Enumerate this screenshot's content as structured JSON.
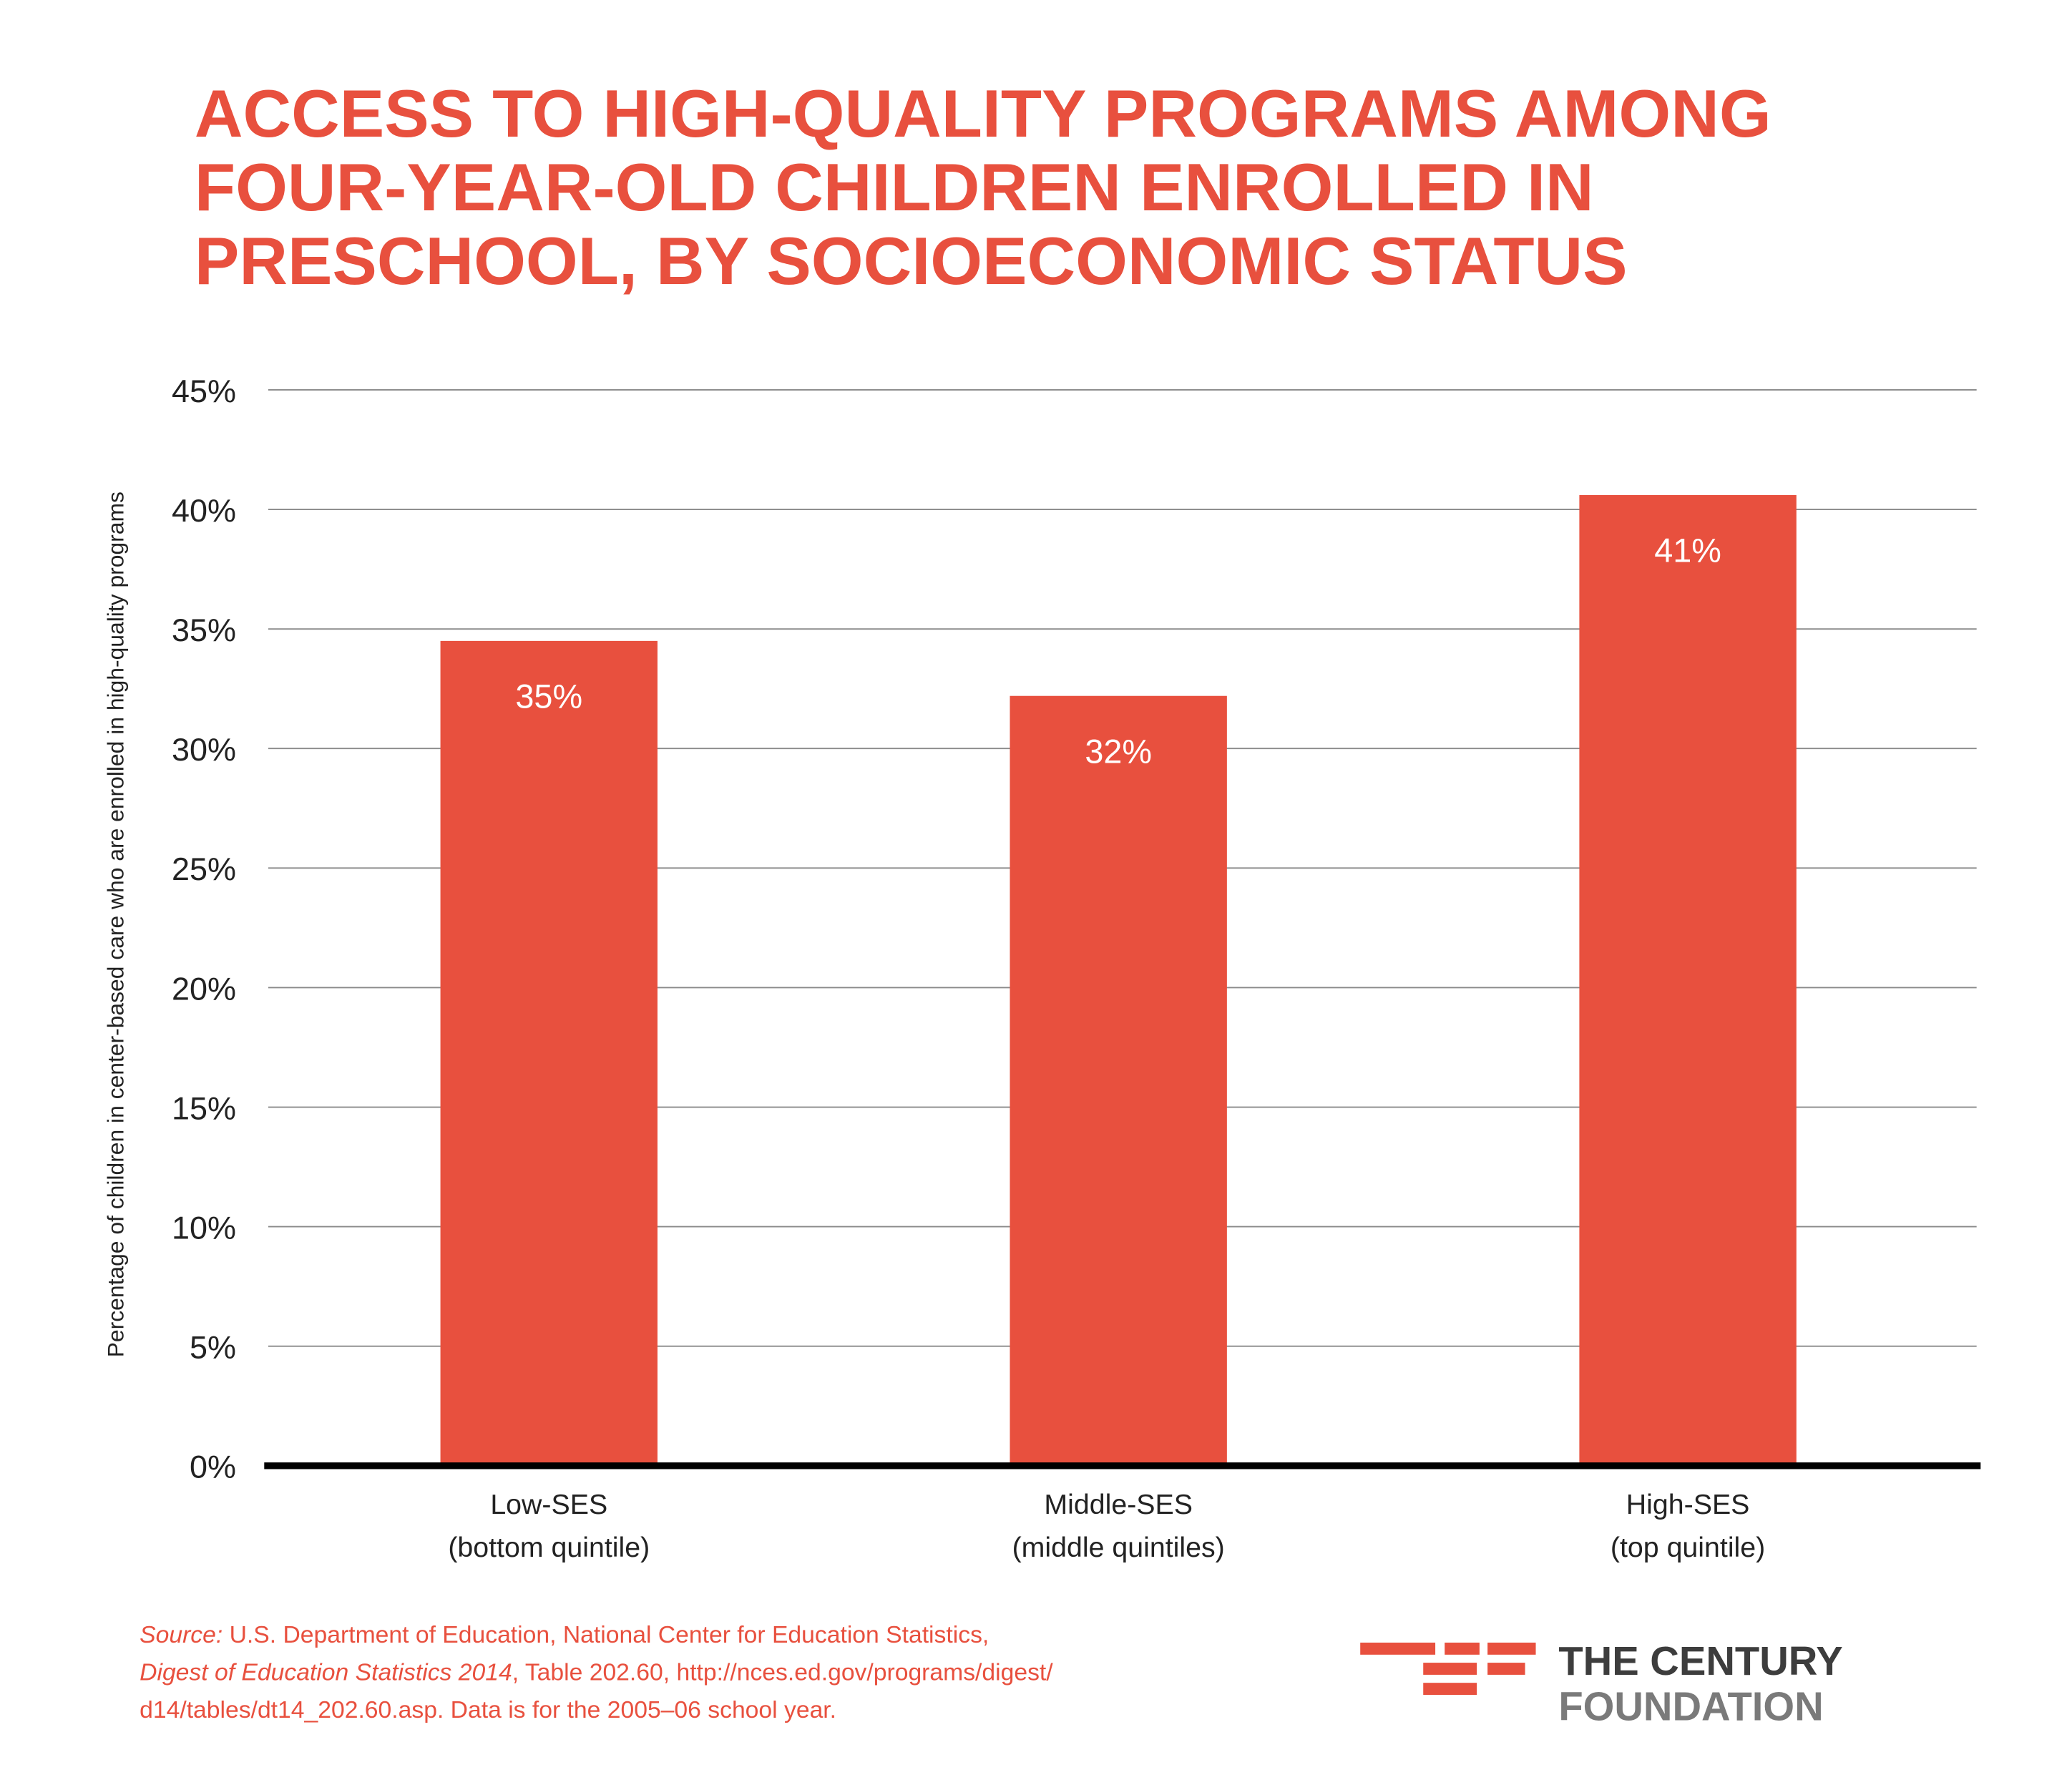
{
  "chart_data": {
    "type": "bar",
    "title": [
      "ACCESS TO HIGH-QUALITY PROGRAMS AMONG",
      "FOUR-YEAR-OLD CHILDREN ENROLLED IN",
      "PRESCHOOL, BY SOCIOECONOMIC STATUS"
    ],
    "y_label": "Percentage of children in center-based care who are enrolled in high-quality programs",
    "categories": [
      [
        "Low-SES",
        "(bottom quintile)"
      ],
      [
        "Middle-SES",
        "(middle quintiles)"
      ],
      [
        "High-SES",
        "(top quintile)"
      ]
    ],
    "values": [
      34.5,
      32.2,
      40.6
    ],
    "value_labels": [
      "35%",
      "32%",
      "41%"
    ],
    "color": "#e8503e",
    "ylim": [
      0,
      45
    ],
    "yticks": [
      {
        "value": 0,
        "label": "0%"
      },
      {
        "value": 5,
        "label": "5%"
      },
      {
        "value": 10,
        "label": "10%"
      },
      {
        "value": 15,
        "label": "15%"
      },
      {
        "value": 20,
        "label": "20%"
      },
      {
        "value": 25,
        "label": "25%"
      },
      {
        "value": 30,
        "label": "30%"
      },
      {
        "value": 35,
        "label": "35%"
      },
      {
        "value": 40,
        "label": "40%"
      },
      {
        "value": 45,
        "label": "45%"
      }
    ],
    "grid": true,
    "source": [
      [
        {
          "text": "Source:",
          "italic": true
        },
        {
          "text": " U.S. Department of Education, National Center for Education Statistics,",
          "italic": false
        }
      ],
      [
        {
          "text": "Digest of Education Statistics 2014",
          "italic": true
        },
        {
          "text": ", Table 202.60, http://nces.ed.gov/programs/digest/",
          "italic": false
        }
      ],
      [
        {
          "text": "d14/tables/dt14_202.60.asp. Data is for the 2005–06 school year.",
          "italic": false
        }
      ]
    ],
    "logo": [
      "THE CENTURY",
      "FOUNDATION"
    ]
  }
}
